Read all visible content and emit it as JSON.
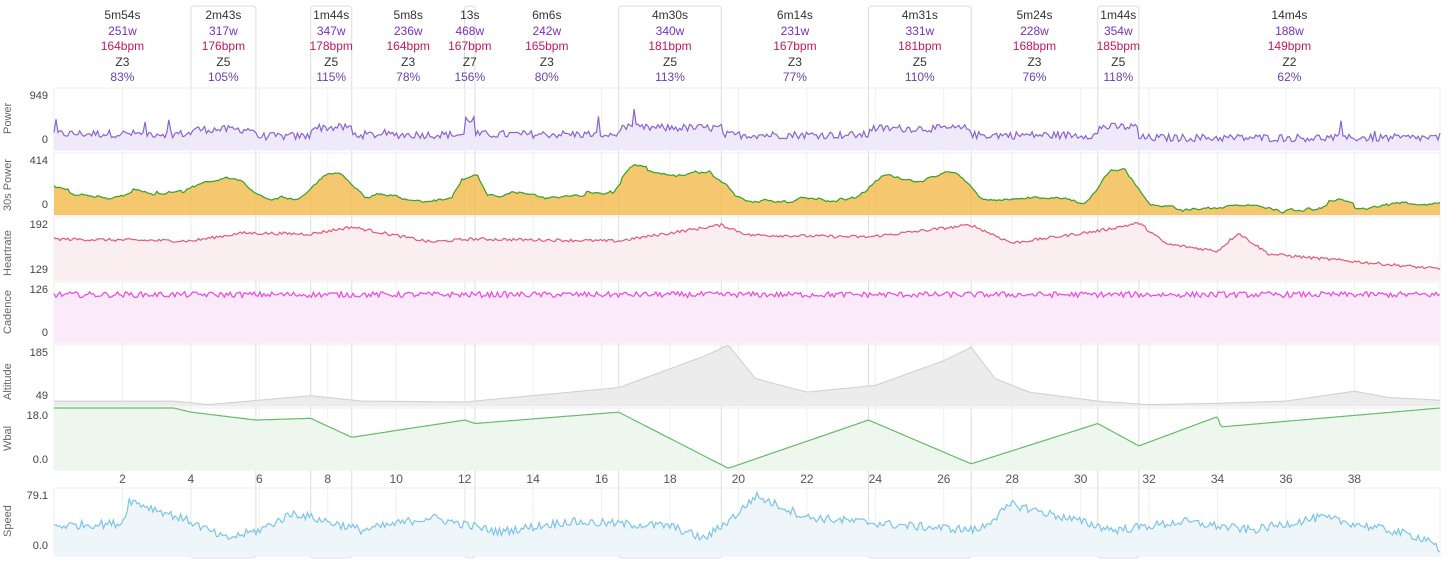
{
  "chart_data": {
    "type": "line",
    "x_unit": "",
    "x_ticks": [
      2,
      4,
      6,
      8,
      10,
      12,
      14,
      16,
      18,
      20,
      22,
      24,
      26,
      28,
      30,
      32,
      34,
      36,
      38
    ],
    "x_range": [
      0,
      40.5
    ],
    "intervals": [
      {
        "start": 0.0,
        "end": 4.0,
        "duration": "5m54s",
        "power": "251w",
        "hr": "164bpm",
        "zone": "Z3",
        "pct": "83%",
        "boxed": false
      },
      {
        "start": 4.0,
        "end": 5.9,
        "duration": "2m43s",
        "power": "317w",
        "hr": "176bpm",
        "zone": "Z5",
        "pct": "105%",
        "boxed": true
      },
      {
        "start": 7.5,
        "end": 8.7,
        "duration": "1m44s",
        "power": "347w",
        "hr": "178bpm",
        "zone": "Z5",
        "pct": "115%",
        "boxed": true
      },
      {
        "start": 8.7,
        "end": 12.0,
        "duration": "5m8s",
        "power": "236w",
        "hr": "164bpm",
        "zone": "Z3",
        "pct": "78%",
        "boxed": false
      },
      {
        "start": 12.0,
        "end": 12.3,
        "duration": "13s",
        "power": "468w",
        "hr": "167bpm",
        "zone": "Z7",
        "pct": "156%",
        "boxed": true
      },
      {
        "start": 12.3,
        "end": 16.5,
        "duration": "6m6s",
        "power": "242w",
        "hr": "165bpm",
        "zone": "Z3",
        "pct": "80%",
        "boxed": false
      },
      {
        "start": 16.5,
        "end": 19.5,
        "duration": "4m30s",
        "power": "340w",
        "hr": "181bpm",
        "zone": "Z5",
        "pct": "113%",
        "boxed": true
      },
      {
        "start": 19.5,
        "end": 23.8,
        "duration": "6m14s",
        "power": "231w",
        "hr": "167bpm",
        "zone": "Z3",
        "pct": "77%",
        "boxed": false
      },
      {
        "start": 23.8,
        "end": 26.8,
        "duration": "4m31s",
        "power": "331w",
        "hr": "181bpm",
        "zone": "Z5",
        "pct": "110%",
        "boxed": true
      },
      {
        "start": 26.8,
        "end": 30.5,
        "duration": "5m24s",
        "power": "228w",
        "hr": "168bpm",
        "zone": "Z3",
        "pct": "76%",
        "boxed": false
      },
      {
        "start": 30.5,
        "end": 31.7,
        "duration": "1m44s",
        "power": "354w",
        "hr": "185bpm",
        "zone": "Z5",
        "pct": "118%",
        "boxed": true
      },
      {
        "start": 31.7,
        "end": 40.5,
        "duration": "14m4s",
        "power": "188w",
        "hr": "149bpm",
        "zone": "Z2",
        "pct": "62%",
        "boxed": false
      }
    ],
    "series": [
      {
        "name": "Power",
        "ymin": 0,
        "ymax": 949,
        "tick_labels": [
          "949",
          "0"
        ],
        "color": "#8a63d2",
        "fill": "#efeaf9"
      },
      {
        "name": "30s Power",
        "ymin": 0,
        "ymax": 414,
        "tick_labels": [
          "414",
          "0"
        ],
        "color": "#33a02c",
        "fill": "#f3b94a"
      },
      {
        "name": "Heartrate",
        "ymin": 129,
        "ymax": 192,
        "tick_labels": [
          "192",
          "129"
        ],
        "color": "#e05a7a",
        "fill": "#fbeef1"
      },
      {
        "name": "Cadence",
        "ymin": 0,
        "ymax": 126,
        "tick_labels": [
          "126",
          "0"
        ],
        "color": "#ee44e8",
        "fill": "#fbeaf9"
      },
      {
        "name": "Altitude",
        "ymin": 49,
        "ymax": 185,
        "tick_labels": [
          "185",
          "49"
        ],
        "color": "#cfcfcf",
        "fill": "#ececec"
      },
      {
        "name": "Wbal",
        "ymin": 0,
        "ymax": 18,
        "tick_labels": [
          "18.0",
          "0.0"
        ],
        "color": "#66bb6a",
        "fill": "#eef7ee"
      },
      {
        "name": "Speed",
        "ymin": 0,
        "ymax": 79.1,
        "tick_labels": [
          "79.1",
          "0.0"
        ],
        "color": "#7cc4e8",
        "fill": "#eef6fa"
      }
    ],
    "grid": true,
    "legend": "none"
  }
}
